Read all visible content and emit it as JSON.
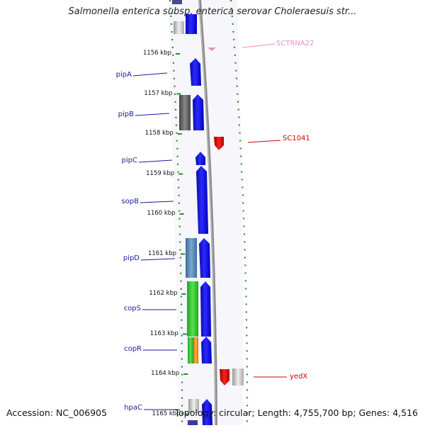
{
  "title": "Salmonella enterica subsp. enterica serovar Choleraesuis str...",
  "footer": {
    "accession": "Accession: NC_006905",
    "summary": "Topology: circular; Length: 4,755,700 bp; Genes: 4,516"
  },
  "ticks": [
    {
      "label": "1156 kbp",
      "kbp": 1156
    },
    {
      "label": "1157 kbp",
      "kbp": 1157
    },
    {
      "label": "1158 kbp",
      "kbp": 1158
    },
    {
      "label": "1159 kbp",
      "kbp": 1159
    },
    {
      "label": "1160 kbp",
      "kbp": 1160
    },
    {
      "label": "1161 kbp",
      "kbp": 1161
    },
    {
      "label": "1162 kbp",
      "kbp": 1162
    },
    {
      "label": "1163 kbp",
      "kbp": 1163
    },
    {
      "label": "1164 kbp",
      "kbp": 1164
    },
    {
      "label": "1165 kbp",
      "kbp": 1165
    }
  ],
  "labels": [
    {
      "name": "SCTRNA22",
      "side": "right",
      "color": "#e58fc9"
    },
    {
      "name": "pipA",
      "side": "left",
      "color": "#1a1aa0"
    },
    {
      "name": "pipB",
      "side": "left",
      "color": "#1a1aa0"
    },
    {
      "name": "SC1041",
      "side": "right",
      "color": "#cc0000"
    },
    {
      "name": "pipC",
      "side": "left",
      "color": "#1a1aa0"
    },
    {
      "name": "sopB",
      "side": "left",
      "color": "#1a1aa0"
    },
    {
      "name": "pipD",
      "side": "left",
      "color": "#1a1aa0"
    },
    {
      "name": "copS",
      "side": "left",
      "color": "#1a1aa0"
    },
    {
      "name": "copR",
      "side": "left",
      "color": "#1a1aa0"
    },
    {
      "name": "yedX",
      "side": "right",
      "color": "#cc0000"
    },
    {
      "name": "hpaC",
      "side": "left",
      "color": "#1a1aa0"
    }
  ],
  "colors": {
    "forward_cds": "#1414e6",
    "reverse_cds": "#cc0000",
    "trna": "#e58fc9",
    "gc_dot": "#2a8a2a",
    "backbone": "#888888"
  }
}
